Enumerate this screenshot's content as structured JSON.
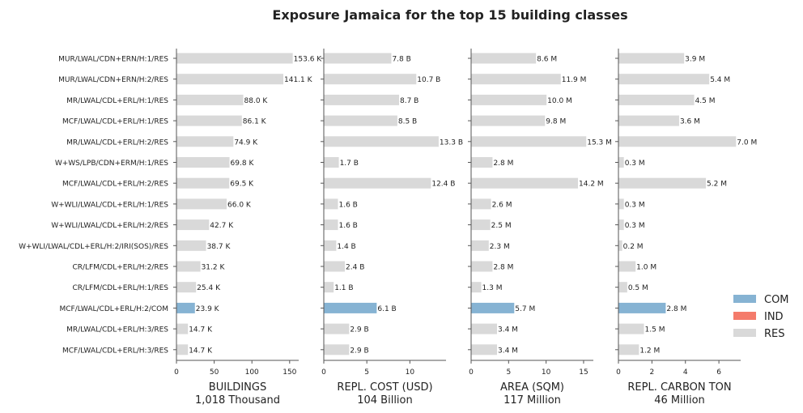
{
  "chart_data": {
    "type": "bar",
    "orientation": "horizontal",
    "title": "Exposure Jamaica for the top 15 building classes",
    "categories": [
      "MUR/LWAL/CDN+ERN/H:1/RES",
      "MUR/LWAL/CDN+ERN/H:2/RES",
      "MR/LWAL/CDL+ERL/H:1/RES",
      "MCF/LWAL/CDL+ERL/H:1/RES",
      "MR/LWAL/CDL+ERL/H:2/RES",
      "W+WS/LPB/CDN+ERM/H:1/RES",
      "MCF/LWAL/CDL+ERL/H:2/RES",
      "W+WLI/LWAL/CDL+ERL/H:1/RES",
      "W+WLI/LWAL/CDL+ERL/H:2/RES",
      "W+WLI/LWAL/CDL+ERL/H:2/IRI(SOS)/RES",
      "CR/LFM/CDL+ERL/H:2/RES",
      "CR/LFM/CDL+ERL/H:1/RES",
      "MCF/LWAL/CDL+ERL/H:2/COM",
      "MR/LWAL/CDL+ERL/H:3/RES",
      "MCF/LWAL/CDL+ERL/H:3/RES"
    ],
    "occupancy": [
      "RES",
      "RES",
      "RES",
      "RES",
      "RES",
      "RES",
      "RES",
      "RES",
      "RES",
      "RES",
      "RES",
      "RES",
      "COM",
      "RES",
      "RES"
    ],
    "legend": {
      "position": "right",
      "entries": [
        {
          "name": "COM",
          "color": "#86b3d3"
        },
        {
          "name": "IND",
          "color": "#f47b6b"
        },
        {
          "name": "RES",
          "color": "#d9d9d9"
        }
      ]
    },
    "panels": [
      {
        "xlabel": "BUILDINGS",
        "total": "1,018 Thousand",
        "xlim": [
          0,
          162
        ],
        "xticks": [
          0,
          50,
          100,
          150
        ],
        "xtick_labels": [
          "0",
          "50",
          "100",
          "150"
        ],
        "values": [
          153.6,
          141.1,
          88.0,
          86.1,
          74.9,
          69.8,
          69.5,
          66.0,
          42.7,
          38.7,
          31.2,
          25.4,
          23.9,
          14.7,
          14.7
        ],
        "labels": [
          "153.6 K",
          "141.1 K",
          "88.0 K",
          "86.1 K",
          "74.9 K",
          "69.8 K",
          "69.5 K",
          "66.0 K",
          "42.7 K",
          "38.7 K",
          "31.2 K",
          "25.4 K",
          "23.9 K",
          "14.7 K",
          "14.7 K"
        ]
      },
      {
        "xlabel": "REPL. COST (USD)",
        "total": "104 Billion",
        "xlim": [
          0,
          14.2
        ],
        "xticks": [
          0,
          5,
          10
        ],
        "xtick_labels": [
          "0",
          "5",
          "10"
        ],
        "values": [
          7.8,
          10.7,
          8.7,
          8.5,
          13.3,
          1.7,
          12.4,
          1.6,
          1.6,
          1.4,
          2.4,
          1.1,
          6.1,
          2.9,
          2.9
        ],
        "labels": [
          "7.8 B",
          "10.7 B",
          "8.7 B",
          "8.5 B",
          "13.3 B",
          "1.7 B",
          "12.4 B",
          "1.6 B",
          "1.6 B",
          "1.4 B",
          "2.4 B",
          "1.1 B",
          "6.1 B",
          "2.9 B",
          "2.9 B"
        ]
      },
      {
        "xlabel": "AREA (SQM)",
        "total": "117 Million",
        "xlim": [
          0,
          16.3
        ],
        "xticks": [
          0,
          5,
          10,
          15
        ],
        "xtick_labels": [
          "0",
          "5",
          "10",
          "15"
        ],
        "values": [
          8.6,
          11.9,
          10.0,
          9.8,
          15.3,
          2.8,
          14.2,
          2.6,
          2.5,
          2.3,
          2.8,
          1.3,
          5.7,
          3.4,
          3.4
        ],
        "labels": [
          "8.6 M",
          "11.9 M",
          "10.0 M",
          "9.8 M",
          "15.3 M",
          "2.8 M",
          "14.2 M",
          "2.6 M",
          "2.5 M",
          "2.3 M",
          "2.8 M",
          "1.3 M",
          "5.7 M",
          "3.4 M",
          "3.4 M"
        ]
      },
      {
        "xlabel": "REPL. CARBON TON",
        "total": "46 Million",
        "xlim": [
          0,
          7.3
        ],
        "xticks": [
          0,
          2,
          4,
          6
        ],
        "xtick_labels": [
          "0",
          "2",
          "4",
          "6"
        ],
        "values": [
          3.9,
          5.4,
          4.5,
          3.6,
          7.0,
          0.3,
          5.2,
          0.3,
          0.3,
          0.2,
          1.0,
          0.5,
          2.8,
          1.5,
          1.2
        ],
        "labels": [
          "3.9 M",
          "5.4 M",
          "4.5 M",
          "3.6 M",
          "7.0 M",
          "0.3 M",
          "5.2 M",
          "0.3 M",
          "0.3 M",
          "0.2 M",
          "1.0 M",
          "0.5 M",
          "2.8 M",
          "1.5 M",
          "1.2 M"
        ]
      }
    ]
  }
}
